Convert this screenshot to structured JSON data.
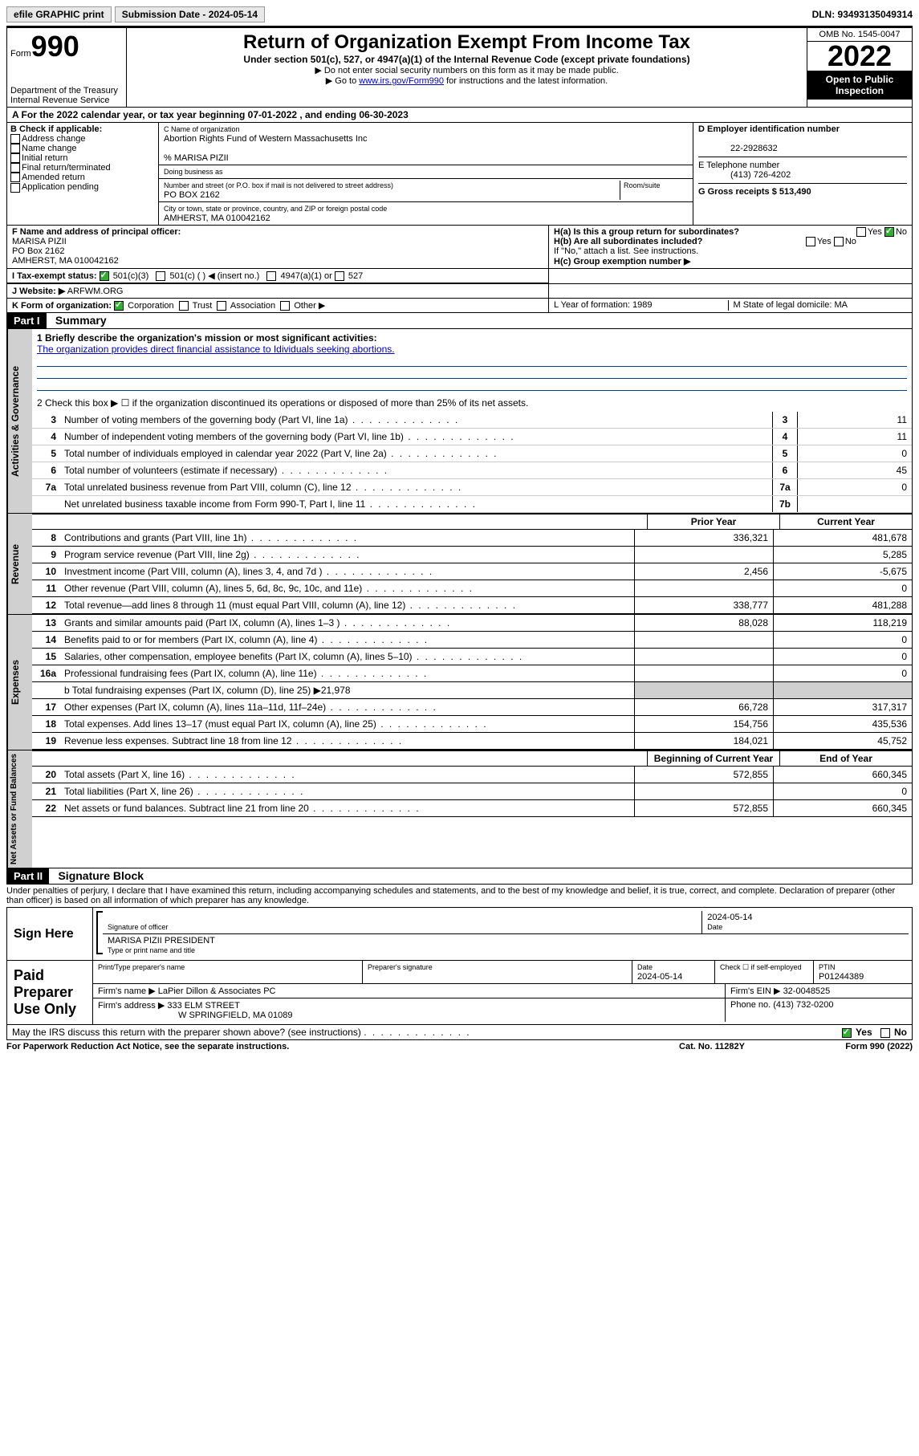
{
  "toolbar": {
    "efile": "efile GRAPHIC print",
    "sub_date_label": "Submission Date - 2024-05-14",
    "dln": "DLN: 93493135049314"
  },
  "header": {
    "form_label": "Form",
    "form_num": "990",
    "dept": "Department of the Treasury",
    "irs": "Internal Revenue Service",
    "title": "Return of Organization Exempt From Income Tax",
    "subtitle": "Under section 501(c), 527, or 4947(a)(1) of the Internal Revenue Code (except private foundations)",
    "note1": "▶ Do not enter social security numbers on this form as it may be made public.",
    "note2_pre": "▶ Go to ",
    "note2_link": "www.irs.gov/Form990",
    "note2_post": " for instructions and the latest information.",
    "omb": "OMB No. 1545-0047",
    "year": "2022",
    "open": "Open to Public Inspection"
  },
  "row_a": "A For the 2022 calendar year, or tax year beginning 07-01-2022   , and ending 06-30-2023",
  "box_b": {
    "title": "B Check if applicable:",
    "opts": [
      "Address change",
      "Name change",
      "Initial return",
      "Final return/terminated",
      "Amended return",
      "Application pending"
    ]
  },
  "box_c": {
    "label_name": "C Name of organization",
    "org_name": "Abortion Rights Fund of Western Massachusetts Inc",
    "care_of": "% MARISA PIZII",
    "dba_label": "Doing business as",
    "addr_label": "Number and street (or P.O. box if mail is not delivered to street address)",
    "room_label": "Room/suite",
    "addr": "PO BOX 2162",
    "city_label": "City or town, state or province, country, and ZIP or foreign postal code",
    "city": "AMHERST, MA  010042162"
  },
  "box_d": {
    "label": "D Employer identification number",
    "ein": "22-2928632"
  },
  "box_e": {
    "label": "E Telephone number",
    "phone": "(413) 726-4202"
  },
  "box_g": "G Gross receipts $ 513,490",
  "box_f": {
    "label": "F Name and address of principal officer:",
    "name": "MARISA PIZII",
    "addr1": "PO Box 2162",
    "addr2": "AMHERST, MA  010042162"
  },
  "box_h": {
    "ha": "H(a)  Is this a group return for subordinates?",
    "ha_yes": "Yes",
    "ha_no": "No",
    "hb": "H(b)  Are all subordinates included?",
    "hb_yes": "Yes",
    "hb_no": "No",
    "hb_note": "If \"No,\" attach a list. See instructions.",
    "hc": "H(c)  Group exemption number ▶"
  },
  "row_i": {
    "label": "I   Tax-exempt status:",
    "o1": "501(c)(3)",
    "o2": "501(c) (   ) ◀ (insert no.)",
    "o3": "4947(a)(1) or",
    "o4": "527"
  },
  "row_j": {
    "label": "J   Website: ▶",
    "value": "ARFWM.ORG"
  },
  "row_k": {
    "label": "K Form of organization:",
    "o1": "Corporation",
    "o2": "Trust",
    "o3": "Association",
    "o4": "Other ▶"
  },
  "row_l": "L Year of formation: 1989",
  "row_m": "M State of legal domicile: MA",
  "part1": {
    "header": "Part I",
    "title": "Summary",
    "line1_label": "1   Briefly describe the organization's mission or most significant activities:",
    "line1_text": "The organization provides direct financial assistance to Idividuals seeking abortions.",
    "line2": "2    Check this box ▶ ☐  if the organization discontinued its operations or disposed of more than 25% of its net assets.",
    "lines_single": [
      {
        "n": "3",
        "d": "Number of voting members of the governing body (Part VI, line 1a)",
        "b": "3",
        "v": "11"
      },
      {
        "n": "4",
        "d": "Number of independent voting members of the governing body (Part VI, line 1b)",
        "b": "4",
        "v": "11"
      },
      {
        "n": "5",
        "d": "Total number of individuals employed in calendar year 2022 (Part V, line 2a)",
        "b": "5",
        "v": "0"
      },
      {
        "n": "6",
        "d": "Total number of volunteers (estimate if necessary)",
        "b": "6",
        "v": "45"
      },
      {
        "n": "7a",
        "d": "Total unrelated business revenue from Part VIII, column (C), line 12",
        "b": "7a",
        "v": "0"
      },
      {
        "n": "",
        "d": "Net unrelated business taxable income from Form 990-T, Part I, line 11",
        "b": "7b",
        "v": ""
      }
    ],
    "col_head1": "Prior Year",
    "col_head2": "Current Year",
    "revenue": [
      {
        "n": "8",
        "d": "Contributions and grants (Part VIII, line 1h)",
        "v1": "336,321",
        "v2": "481,678"
      },
      {
        "n": "9",
        "d": "Program service revenue (Part VIII, line 2g)",
        "v1": "",
        "v2": "5,285"
      },
      {
        "n": "10",
        "d": "Investment income (Part VIII, column (A), lines 3, 4, and 7d )",
        "v1": "2,456",
        "v2": "-5,675"
      },
      {
        "n": "11",
        "d": "Other revenue (Part VIII, column (A), lines 5, 6d, 8c, 9c, 10c, and 11e)",
        "v1": "",
        "v2": "0"
      },
      {
        "n": "12",
        "d": "Total revenue—add lines 8 through 11 (must equal Part VIII, column (A), line 12)",
        "v1": "338,777",
        "v2": "481,288"
      }
    ],
    "expenses": [
      {
        "n": "13",
        "d": "Grants and similar amounts paid (Part IX, column (A), lines 1–3 )",
        "v1": "88,028",
        "v2": "118,219"
      },
      {
        "n": "14",
        "d": "Benefits paid to or for members (Part IX, column (A), line 4)",
        "v1": "",
        "v2": "0"
      },
      {
        "n": "15",
        "d": "Salaries, other compensation, employee benefits (Part IX, column (A), lines 5–10)",
        "v1": "",
        "v2": "0"
      },
      {
        "n": "16a",
        "d": "Professional fundraising fees (Part IX, column (A), line 11e)",
        "v1": "",
        "v2": "0"
      }
    ],
    "line16b": "b   Total fundraising expenses (Part IX, column (D), line 25) ▶21,978",
    "expenses2": [
      {
        "n": "17",
        "d": "Other expenses (Part IX, column (A), lines 11a–11d, 11f–24e)",
        "v1": "66,728",
        "v2": "317,317"
      },
      {
        "n": "18",
        "d": "Total expenses. Add lines 13–17 (must equal Part IX, column (A), line 25)",
        "v1": "154,756",
        "v2": "435,536"
      },
      {
        "n": "19",
        "d": "Revenue less expenses. Subtract line 18 from line 12",
        "v1": "184,021",
        "v2": "45,752"
      }
    ],
    "col_head3": "Beginning of Current Year",
    "col_head4": "End of Year",
    "netassets": [
      {
        "n": "20",
        "d": "Total assets (Part X, line 16)",
        "v1": "572,855",
        "v2": "660,345"
      },
      {
        "n": "21",
        "d": "Total liabilities (Part X, line 26)",
        "v1": "",
        "v2": "0"
      },
      {
        "n": "22",
        "d": "Net assets or fund balances. Subtract line 21 from line 20",
        "v1": "572,855",
        "v2": "660,345"
      }
    ],
    "vtab_gov": "Activities & Governance",
    "vtab_rev": "Revenue",
    "vtab_exp": "Expenses",
    "vtab_net": "Net Assets or Fund Balances"
  },
  "part2": {
    "header": "Part II",
    "title": "Signature Block",
    "decl": "Under penalties of perjury, I declare that I have examined this return, including accompanying schedules and statements, and to the best of my knowledge and belief, it is true, correct, and complete. Declaration of preparer (other than officer) is based on all information of which preparer has any knowledge.",
    "sign_here": "Sign Here",
    "sig_officer": "Signature of officer",
    "sig_date": "2024-05-14",
    "date_label": "Date",
    "officer_name": "MARISA PIZII  PRESIDENT",
    "officer_label": "Type or print name and title",
    "paid": "Paid Preparer Use Only",
    "prep_name_label": "Print/Type preparer's name",
    "prep_sig_label": "Preparer's signature",
    "prep_date": "2024-05-14",
    "check_label": "Check ☐ if self-employed",
    "ptin_label": "PTIN",
    "ptin": "P01244389",
    "firm_name_label": "Firm's name    ▶",
    "firm_name": "LaPier Dillon & Associates PC",
    "firm_ein_label": "Firm's EIN ▶",
    "firm_ein": "32-0048525",
    "firm_addr_label": "Firm's address ▶",
    "firm_addr1": "333 ELM STREET",
    "firm_addr2": "W SPRINGFIELD, MA  01089",
    "firm_phone_label": "Phone no.",
    "firm_phone": "(413) 732-0200",
    "may_irs": "May the IRS discuss this return with the preparer shown above? (see instructions)",
    "may_yes": "Yes",
    "may_no": "No"
  },
  "footer": {
    "pra": "For Paperwork Reduction Act Notice, see the separate instructions.",
    "cat": "Cat. No. 11282Y",
    "form": "Form 990 (2022)"
  }
}
